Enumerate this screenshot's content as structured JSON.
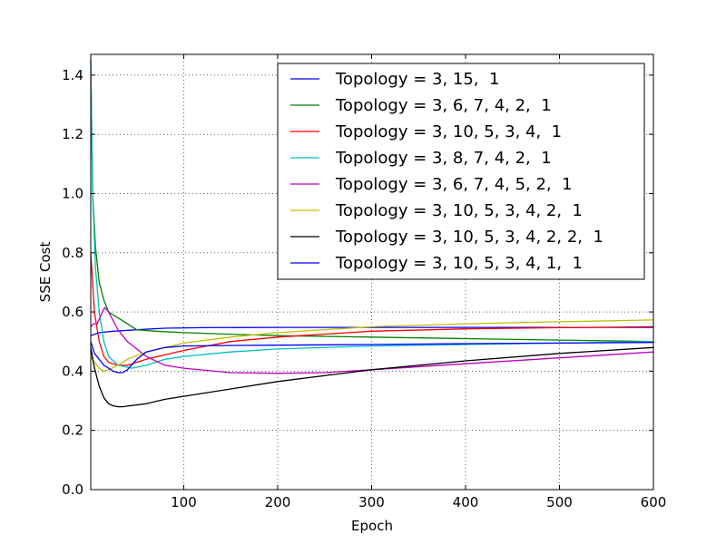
{
  "chart_data": {
    "type": "line",
    "xlabel": "Epoch",
    "ylabel": "SSE Cost",
    "xlim": [
      1,
      600
    ],
    "ylim": [
      0,
      1.47
    ],
    "x_ticks": [
      100,
      200,
      300,
      400,
      500,
      600
    ],
    "x_tick_labels": [
      "100",
      "200",
      "300",
      "400",
      "500",
      "600"
    ],
    "y_ticks": [
      0.0,
      0.2,
      0.4,
      0.6,
      0.8,
      1.0,
      1.2,
      1.4
    ],
    "y_tick_labels": [
      "0.0",
      "0.2",
      "0.4",
      "0.6",
      "0.8",
      "1.0",
      "1.2",
      "1.4"
    ],
    "grid": true,
    "legend_position": "top-right",
    "series": [
      {
        "name": "Topology = 3, 15,  1",
        "color": "#0000ff",
        "x": [
          1,
          10,
          25,
          50,
          80,
          120,
          200,
          300,
          400,
          500,
          600
        ],
        "y": [
          0.52,
          0.53,
          0.535,
          0.54,
          0.545,
          0.547,
          0.548,
          0.548,
          0.548,
          0.548,
          0.548
        ]
      },
      {
        "name": "Topology = 3, 6, 7, 4, 2,  1",
        "color": "#008000",
        "x": [
          1,
          3,
          6,
          10,
          15,
          20,
          30,
          40,
          50,
          70,
          100,
          150,
          200,
          300,
          400,
          500,
          600
        ],
        "y": [
          1.45,
          1.0,
          0.82,
          0.7,
          0.64,
          0.6,
          0.58,
          0.56,
          0.54,
          0.535,
          0.53,
          0.525,
          0.52,
          0.515,
          0.51,
          0.505,
          0.5
        ]
      },
      {
        "name": "Topology = 3, 10, 5, 3, 4,  1",
        "color": "#ff0000",
        "x": [
          1,
          5,
          10,
          15,
          20,
          30,
          40,
          60,
          100,
          150,
          200,
          300,
          400,
          500,
          600
        ],
        "y": [
          0.8,
          0.6,
          0.5,
          0.45,
          0.43,
          0.42,
          0.42,
          0.44,
          0.47,
          0.5,
          0.515,
          0.535,
          0.543,
          0.547,
          0.55
        ]
      },
      {
        "name": "Topology = 3, 8, 7, 4, 2,  1",
        "color": "#00bfbf",
        "x": [
          1,
          3,
          6,
          10,
          15,
          20,
          30,
          45,
          60,
          80,
          100,
          150,
          200,
          300,
          400,
          500,
          600
        ],
        "y": [
          1.45,
          1.0,
          0.75,
          0.6,
          0.5,
          0.45,
          0.42,
          0.41,
          0.42,
          0.44,
          0.45,
          0.465,
          0.475,
          0.485,
          0.49,
          0.495,
          0.5
        ]
      },
      {
        "name": "Topology = 3, 6, 7, 4, 5, 2,  1",
        "color": "#bf00bf",
        "x": [
          1,
          4,
          8,
          12,
          16,
          20,
          30,
          40,
          60,
          80,
          100,
          150,
          200,
          250,
          300,
          400,
          500,
          600
        ],
        "y": [
          0.55,
          0.56,
          0.56,
          0.59,
          0.615,
          0.6,
          0.54,
          0.5,
          0.45,
          0.42,
          0.41,
          0.395,
          0.393,
          0.395,
          0.405,
          0.425,
          0.445,
          0.465
        ]
      },
      {
        "name": "Topology = 3, 10, 5, 3, 4, 2,  1",
        "color": "#bfbf00",
        "x": [
          1,
          5,
          10,
          15,
          20,
          30,
          40,
          60,
          80,
          100,
          150,
          200,
          300,
          400,
          500,
          600
        ],
        "y": [
          0.45,
          0.43,
          0.41,
          0.4,
          0.405,
          0.42,
          0.44,
          0.465,
          0.48,
          0.495,
          0.515,
          0.53,
          0.55,
          0.56,
          0.567,
          0.573
        ]
      },
      {
        "name": "Topology = 3, 10, 5, 3, 4, 2, 2,  1",
        "color": "#000000",
        "x": [
          1,
          5,
          10,
          15,
          20,
          25,
          30,
          35,
          40,
          60,
          80,
          100,
          150,
          200,
          300,
          400,
          500,
          600
        ],
        "y": [
          0.48,
          0.41,
          0.35,
          0.31,
          0.29,
          0.283,
          0.28,
          0.28,
          0.282,
          0.29,
          0.305,
          0.315,
          0.34,
          0.365,
          0.405,
          0.435,
          0.46,
          0.48
        ]
      },
      {
        "name": "Topology = 3, 10, 5, 3, 4, 1,  1",
        "color": "#0000ff",
        "x": [
          1,
          5,
          10,
          15,
          20,
          25,
          30,
          35,
          40,
          50,
          60,
          80,
          100,
          150,
          200,
          300,
          400,
          500,
          600
        ],
        "y": [
          0.5,
          0.46,
          0.44,
          0.42,
          0.41,
          0.4,
          0.395,
          0.395,
          0.405,
          0.44,
          0.465,
          0.48,
          0.485,
          0.487,
          0.488,
          0.49,
          0.493,
          0.495,
          0.497
        ]
      }
    ]
  }
}
